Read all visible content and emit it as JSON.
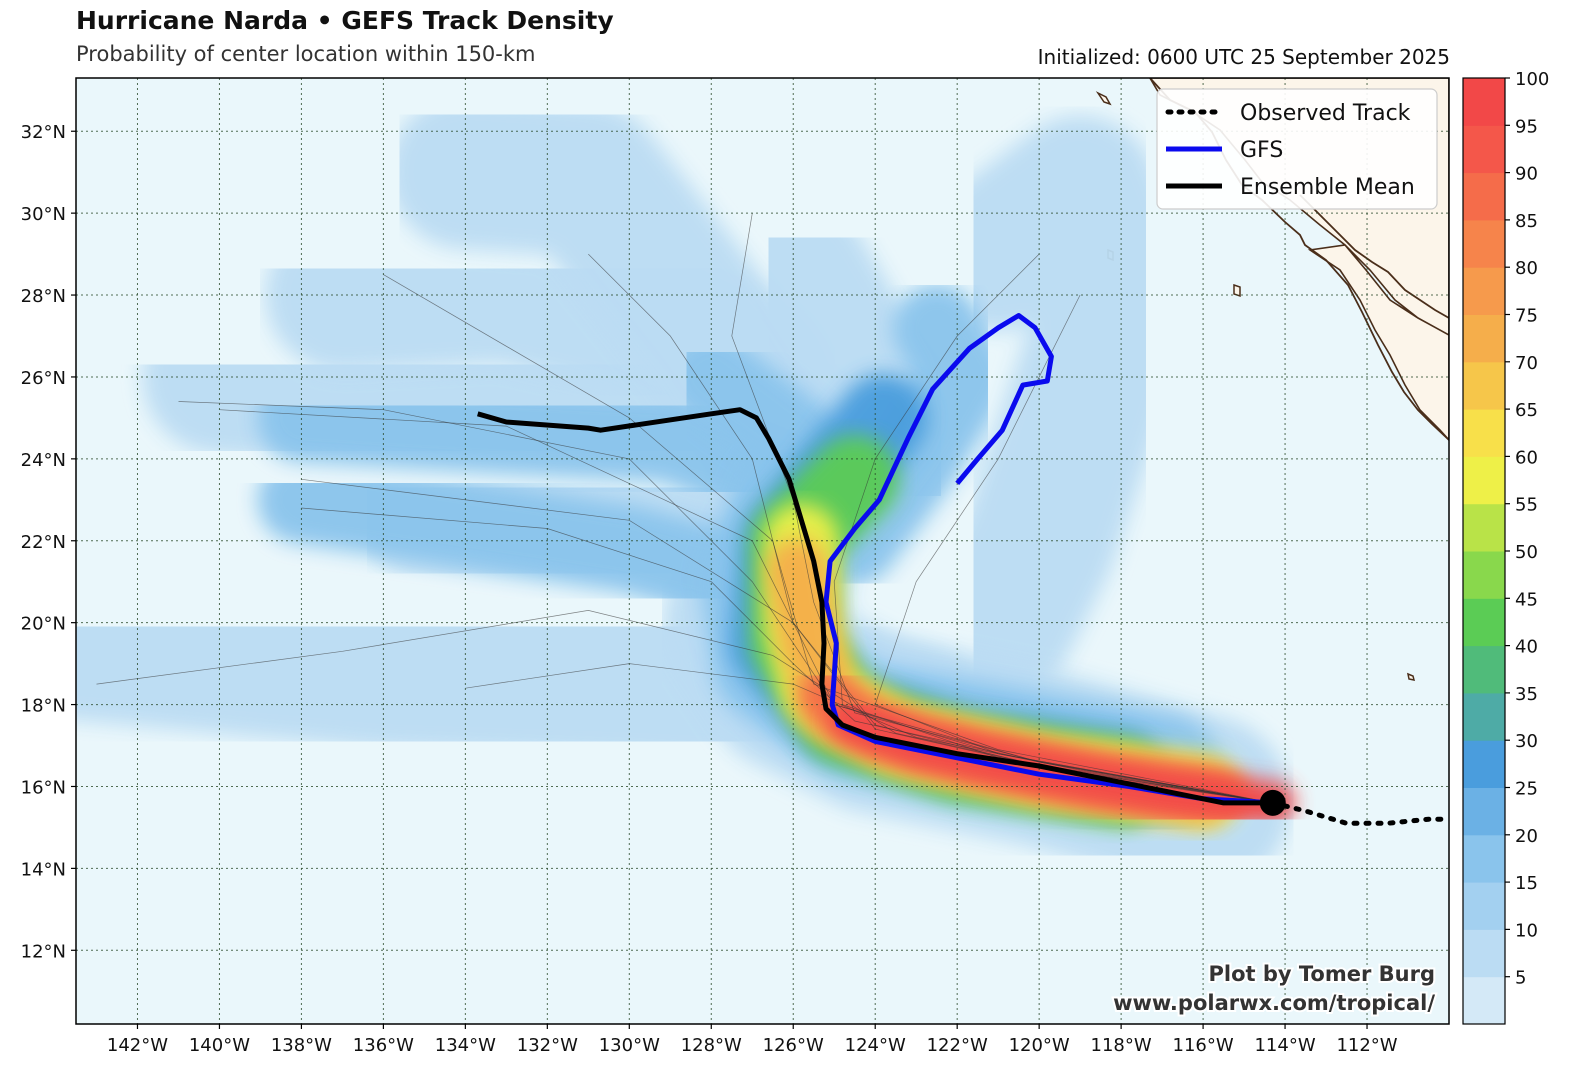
{
  "header": {
    "title": "Hurricane Narda • GEFS Track Density",
    "subtitle": "Probability of center location within 150-km",
    "initialized": "Initialized: 0600 UTC 25 September 2025"
  },
  "legend": {
    "observed": "Observed Track",
    "gfs": "GFS",
    "ensemble": "Ensemble Mean"
  },
  "credit": {
    "line1": "Plot by Tomer Burg",
    "line2": "www.polarwx.com/tropical/"
  },
  "colors": {
    "ocean": "#eaf7fb",
    "land": "#fcf5ea",
    "coast": "#4a2e1a",
    "gfs": "#0a0aee",
    "ensemble": "#000000"
  },
  "map": {
    "lon_range": [
      -143.5,
      -110.0
    ],
    "lat_range": [
      10.2,
      33.3
    ],
    "lat_ticks": [
      "12°N",
      "14°N",
      "16°N",
      "18°N",
      "20°N",
      "22°N",
      "24°N",
      "26°N",
      "28°N",
      "30°N",
      "32°N"
    ],
    "lon_ticks": [
      "142°W",
      "140°W",
      "138°W",
      "136°W",
      "134°W",
      "132°W",
      "130°W",
      "128°W",
      "126°W",
      "124°W",
      "122°W",
      "120°W",
      "118°W",
      "116°W",
      "114°W",
      "112°W"
    ]
  },
  "colorbar": {
    "ticks": [
      "5",
      "10",
      "15",
      "20",
      "25",
      "30",
      "35",
      "40",
      "45",
      "50",
      "55",
      "60",
      "65",
      "70",
      "75",
      "80",
      "85",
      "90",
      "95",
      "100"
    ],
    "colors": [
      "#d4e9f7",
      "#bbdcf3",
      "#a3d0f0",
      "#8ac4ec",
      "#6bb1e5",
      "#4a9ddd",
      "#4eaba6",
      "#50bb7a",
      "#5bcc55",
      "#89d84c",
      "#b9e348",
      "#eef048",
      "#f8e04a",
      "#f6c64a",
      "#f5ae4b",
      "#f69a4c",
      "#f6844b",
      "#f56c4a",
      "#f4574a",
      "#f24848"
    ]
  },
  "tracks": {
    "ensemble_mean": [
      [
        -114.3,
        15.6
      ],
      [
        -115.5,
        15.6
      ],
      [
        -117.0,
        15.9
      ],
      [
        -118.5,
        16.2
      ],
      [
        -120.0,
        16.5
      ],
      [
        -122.0,
        16.8
      ],
      [
        -124.0,
        17.2
      ],
      [
        -124.8,
        17.5
      ],
      [
        -125.2,
        17.9
      ],
      [
        -125.3,
        18.5
      ],
      [
        -125.25,
        19.5
      ],
      [
        -125.3,
        20.5
      ],
      [
        -125.5,
        21.5
      ],
      [
        -125.8,
        22.5
      ],
      [
        -126.1,
        23.5
      ],
      [
        -126.6,
        24.5
      ],
      [
        -126.9,
        25.0
      ],
      [
        -127.3,
        25.2
      ],
      [
        -128.0,
        25.1
      ],
      [
        -130.7,
        24.7
      ],
      [
        -131.0,
        24.75
      ],
      [
        -133.0,
        24.9
      ],
      [
        -133.7,
        25.1
      ]
    ],
    "gfs": [
      [
        -114.3,
        15.6
      ],
      [
        -116.0,
        15.7
      ],
      [
        -117.8,
        16.0
      ],
      [
        -120.0,
        16.3
      ],
      [
        -122.0,
        16.7
      ],
      [
        -124.0,
        17.1
      ],
      [
        -124.9,
        17.5
      ],
      [
        -125.05,
        18.0
      ],
      [
        -125.0,
        18.7
      ],
      [
        -124.95,
        19.5
      ],
      [
        -125.2,
        20.5
      ],
      [
        -125.1,
        21.5
      ],
      [
        -124.5,
        22.3
      ],
      [
        -123.9,
        23.0
      ],
      [
        -123.2,
        24.5
      ],
      [
        -122.6,
        25.7
      ],
      [
        -121.7,
        26.7
      ],
      [
        -121.0,
        27.2
      ],
      [
        -120.5,
        27.5
      ],
      [
        -120.1,
        27.2
      ],
      [
        -119.7,
        26.5
      ],
      [
        -119.8,
        25.9
      ],
      [
        -120.4,
        25.8
      ],
      [
        -120.9,
        24.7
      ],
      [
        -121.5,
        24.0
      ],
      [
        -122.0,
        23.4
      ]
    ],
    "observed": [
      [
        -114.3,
        15.6
      ],
      [
        -113.5,
        15.4
      ],
      [
        -112.5,
        15.1
      ],
      [
        -111.5,
        15.1
      ],
      [
        -110.5,
        15.2
      ],
      [
        -110.0,
        15.2
      ]
    ]
  }
}
